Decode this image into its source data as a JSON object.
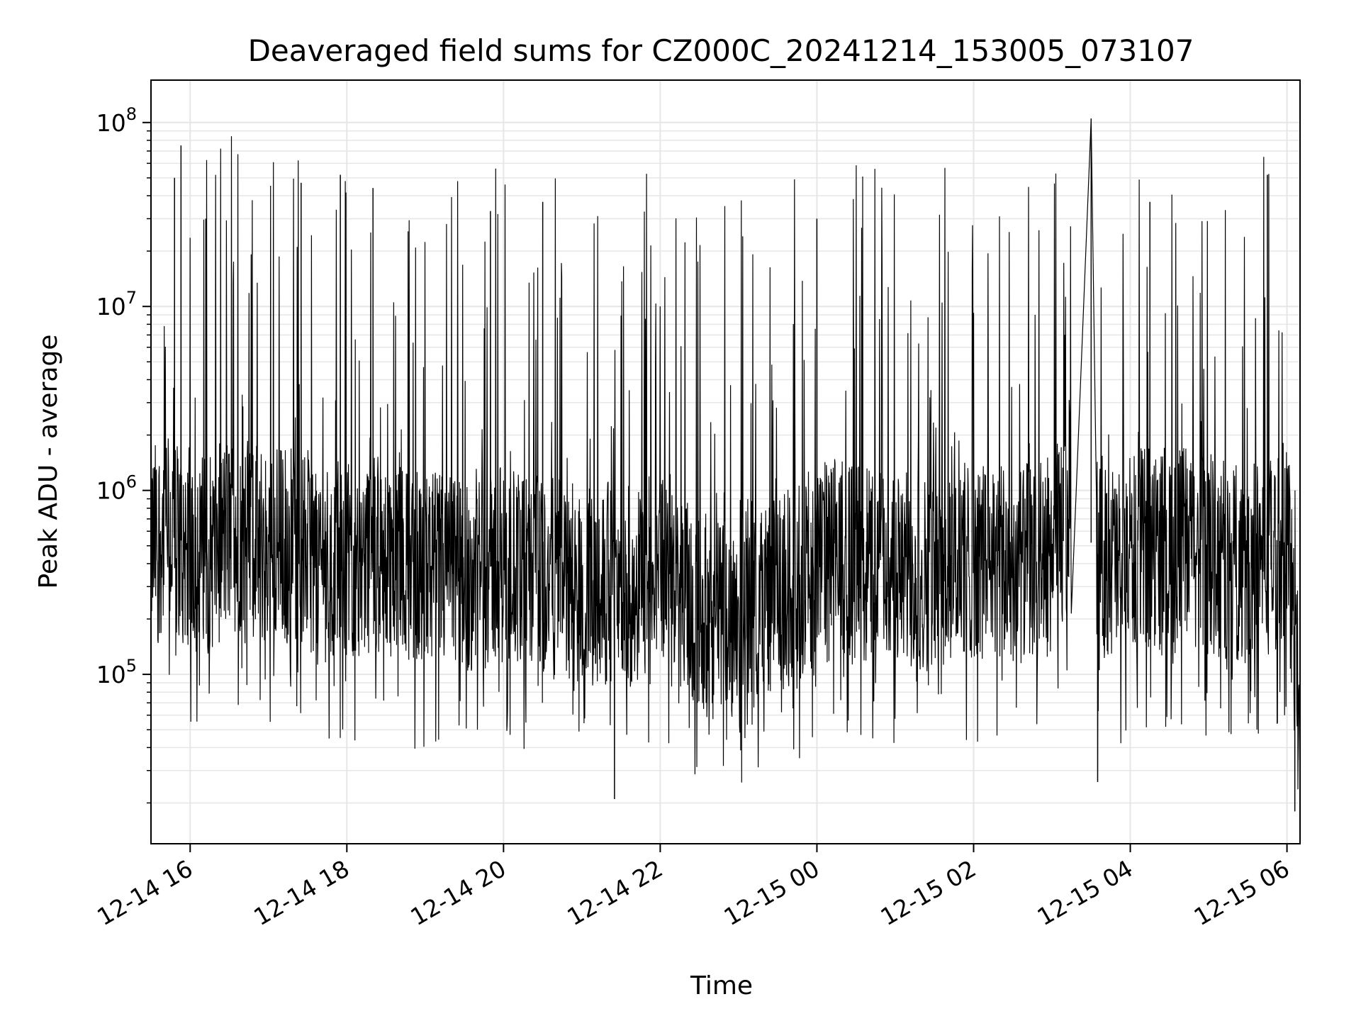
{
  "chart_data": {
    "type": "line",
    "title": "Deaveraged field sums for CZ000C_20241214_153005_073107",
    "xlabel": "Time",
    "ylabel": "Peak ADU - average",
    "y_scale": "log",
    "x_axis_type": "datetime",
    "xlim": [
      "2024-12-14T15:30",
      "2024-12-15T06:10"
    ],
    "ylim": [
      12000,
      170000000
    ],
    "x_ticks": [
      {
        "value": "2024-12-14T16:00",
        "label": "12-14 16"
      },
      {
        "value": "2024-12-14T18:00",
        "label": "12-14 18"
      },
      {
        "value": "2024-12-14T20:00",
        "label": "12-14 20"
      },
      {
        "value": "2024-12-14T22:00",
        "label": "12-14 22"
      },
      {
        "value": "2024-12-15T00:00",
        "label": "12-15 00"
      },
      {
        "value": "2024-12-15T02:00",
        "label": "12-15 02"
      },
      {
        "value": "2024-12-15T04:00",
        "label": "12-15 04"
      },
      {
        "value": "2024-12-15T06:00",
        "label": "12-15 06"
      }
    ],
    "y_ticks": [
      {
        "value": 100000,
        "base": "10",
        "exponent": "5"
      },
      {
        "value": 1000000,
        "base": "10",
        "exponent": "6"
      },
      {
        "value": 10000000,
        "base": "10",
        "exponent": "7"
      },
      {
        "value": 100000000,
        "base": "10",
        "exponent": "8"
      }
    ],
    "grid": true,
    "minor_grid": true,
    "line_color": "#000000",
    "series": [
      {
        "x": [
          "2024-12-14T15:30",
          "2024-12-14T15:40",
          "2024-12-14T15:50",
          "2024-12-14T16:00",
          "2024-12-14T16:15",
          "2024-12-14T16:30",
          "2024-12-14T16:45",
          "2024-12-14T17:00",
          "2024-12-14T17:15",
          "2024-12-14T17:30",
          "2024-12-14T17:45",
          "2024-12-14T18:00",
          "2024-12-14T18:20",
          "2024-12-14T18:40",
          "2024-12-14T19:00",
          "2024-12-14T19:20",
          "2024-12-14T19:40",
          "2024-12-14T20:00",
          "2024-12-14T20:20",
          "2024-12-14T20:40",
          "2024-12-14T21:00",
          "2024-12-14T21:20",
          "2024-12-14T21:40",
          "2024-12-14T22:00",
          "2024-12-14T22:20",
          "2024-12-14T22:40",
          "2024-12-14T23:00",
          "2024-12-14T23:20",
          "2024-12-14T23:40",
          "2024-12-15T00:00",
          "2024-12-15T00:20",
          "2024-12-15T00:40",
          "2024-12-15T01:00",
          "2024-12-15T01:20",
          "2024-12-15T01:40",
          "2024-12-15T02:00",
          "2024-12-15T02:20",
          "2024-12-15T02:40",
          "2024-12-15T03:00",
          "2024-12-15T03:15",
          "2024-12-15T03:35",
          "2024-12-15T03:50",
          "2024-12-15T04:10",
          "2024-12-15T04:30",
          "2024-12-15T04:50",
          "2024-12-15T05:10",
          "2024-12-15T05:30",
          "2024-12-15T05:50",
          "2024-12-15T06:00",
          "2024-12-15T06:05",
          "2024-12-15T06:10"
        ],
        "y": [
          500000,
          600000,
          550000,
          500000,
          450000,
          600000,
          550000,
          500000,
          520000,
          480000,
          400000,
          420000,
          450000,
          400000,
          380000,
          350000,
          370000,
          400000,
          350000,
          330000,
          300000,
          320000,
          300000,
          450000,
          250000,
          200000,
          250000,
          280000,
          300000,
          400000,
          450000,
          400000,
          380000,
          350000,
          400000,
          420000,
          380000,
          400000,
          450000,
          800000,
          450000,
          400000,
          500000,
          500000,
          480000,
          420000,
          400000,
          450000,
          600000,
          200000,
          50000
        ],
        "peaks": [
          {
            "x": "2024-12-14T15:48",
            "y": 50000000
          },
          {
            "x": "2024-12-14T15:53",
            "y": 75000000
          },
          {
            "x": "2024-12-14T16:12",
            "y": 30000000
          },
          {
            "x": "2024-12-14T17:25",
            "y": 47000000
          },
          {
            "x": "2024-12-14T17:55",
            "y": 52000000
          },
          {
            "x": "2024-12-14T18:20",
            "y": 44000000
          },
          {
            "x": "2024-12-14T19:50",
            "y": 33000000
          },
          {
            "x": "2024-12-14T20:30",
            "y": 37000000
          },
          {
            "x": "2024-12-15T00:00",
            "y": 30000000
          },
          {
            "x": "2024-12-15T03:30",
            "y": 105000000
          },
          {
            "x": "2024-12-15T04:15",
            "y": 37000000
          },
          {
            "x": "2024-12-15T05:45",
            "y": 52000000
          }
        ],
        "troughs": [
          {
            "x": "2024-12-14T21:25",
            "y": 21000
          },
          {
            "x": "2024-12-15T03:35",
            "y": 26000
          },
          {
            "x": "2024-12-15T06:06",
            "y": 18000
          }
        ]
      }
    ]
  }
}
